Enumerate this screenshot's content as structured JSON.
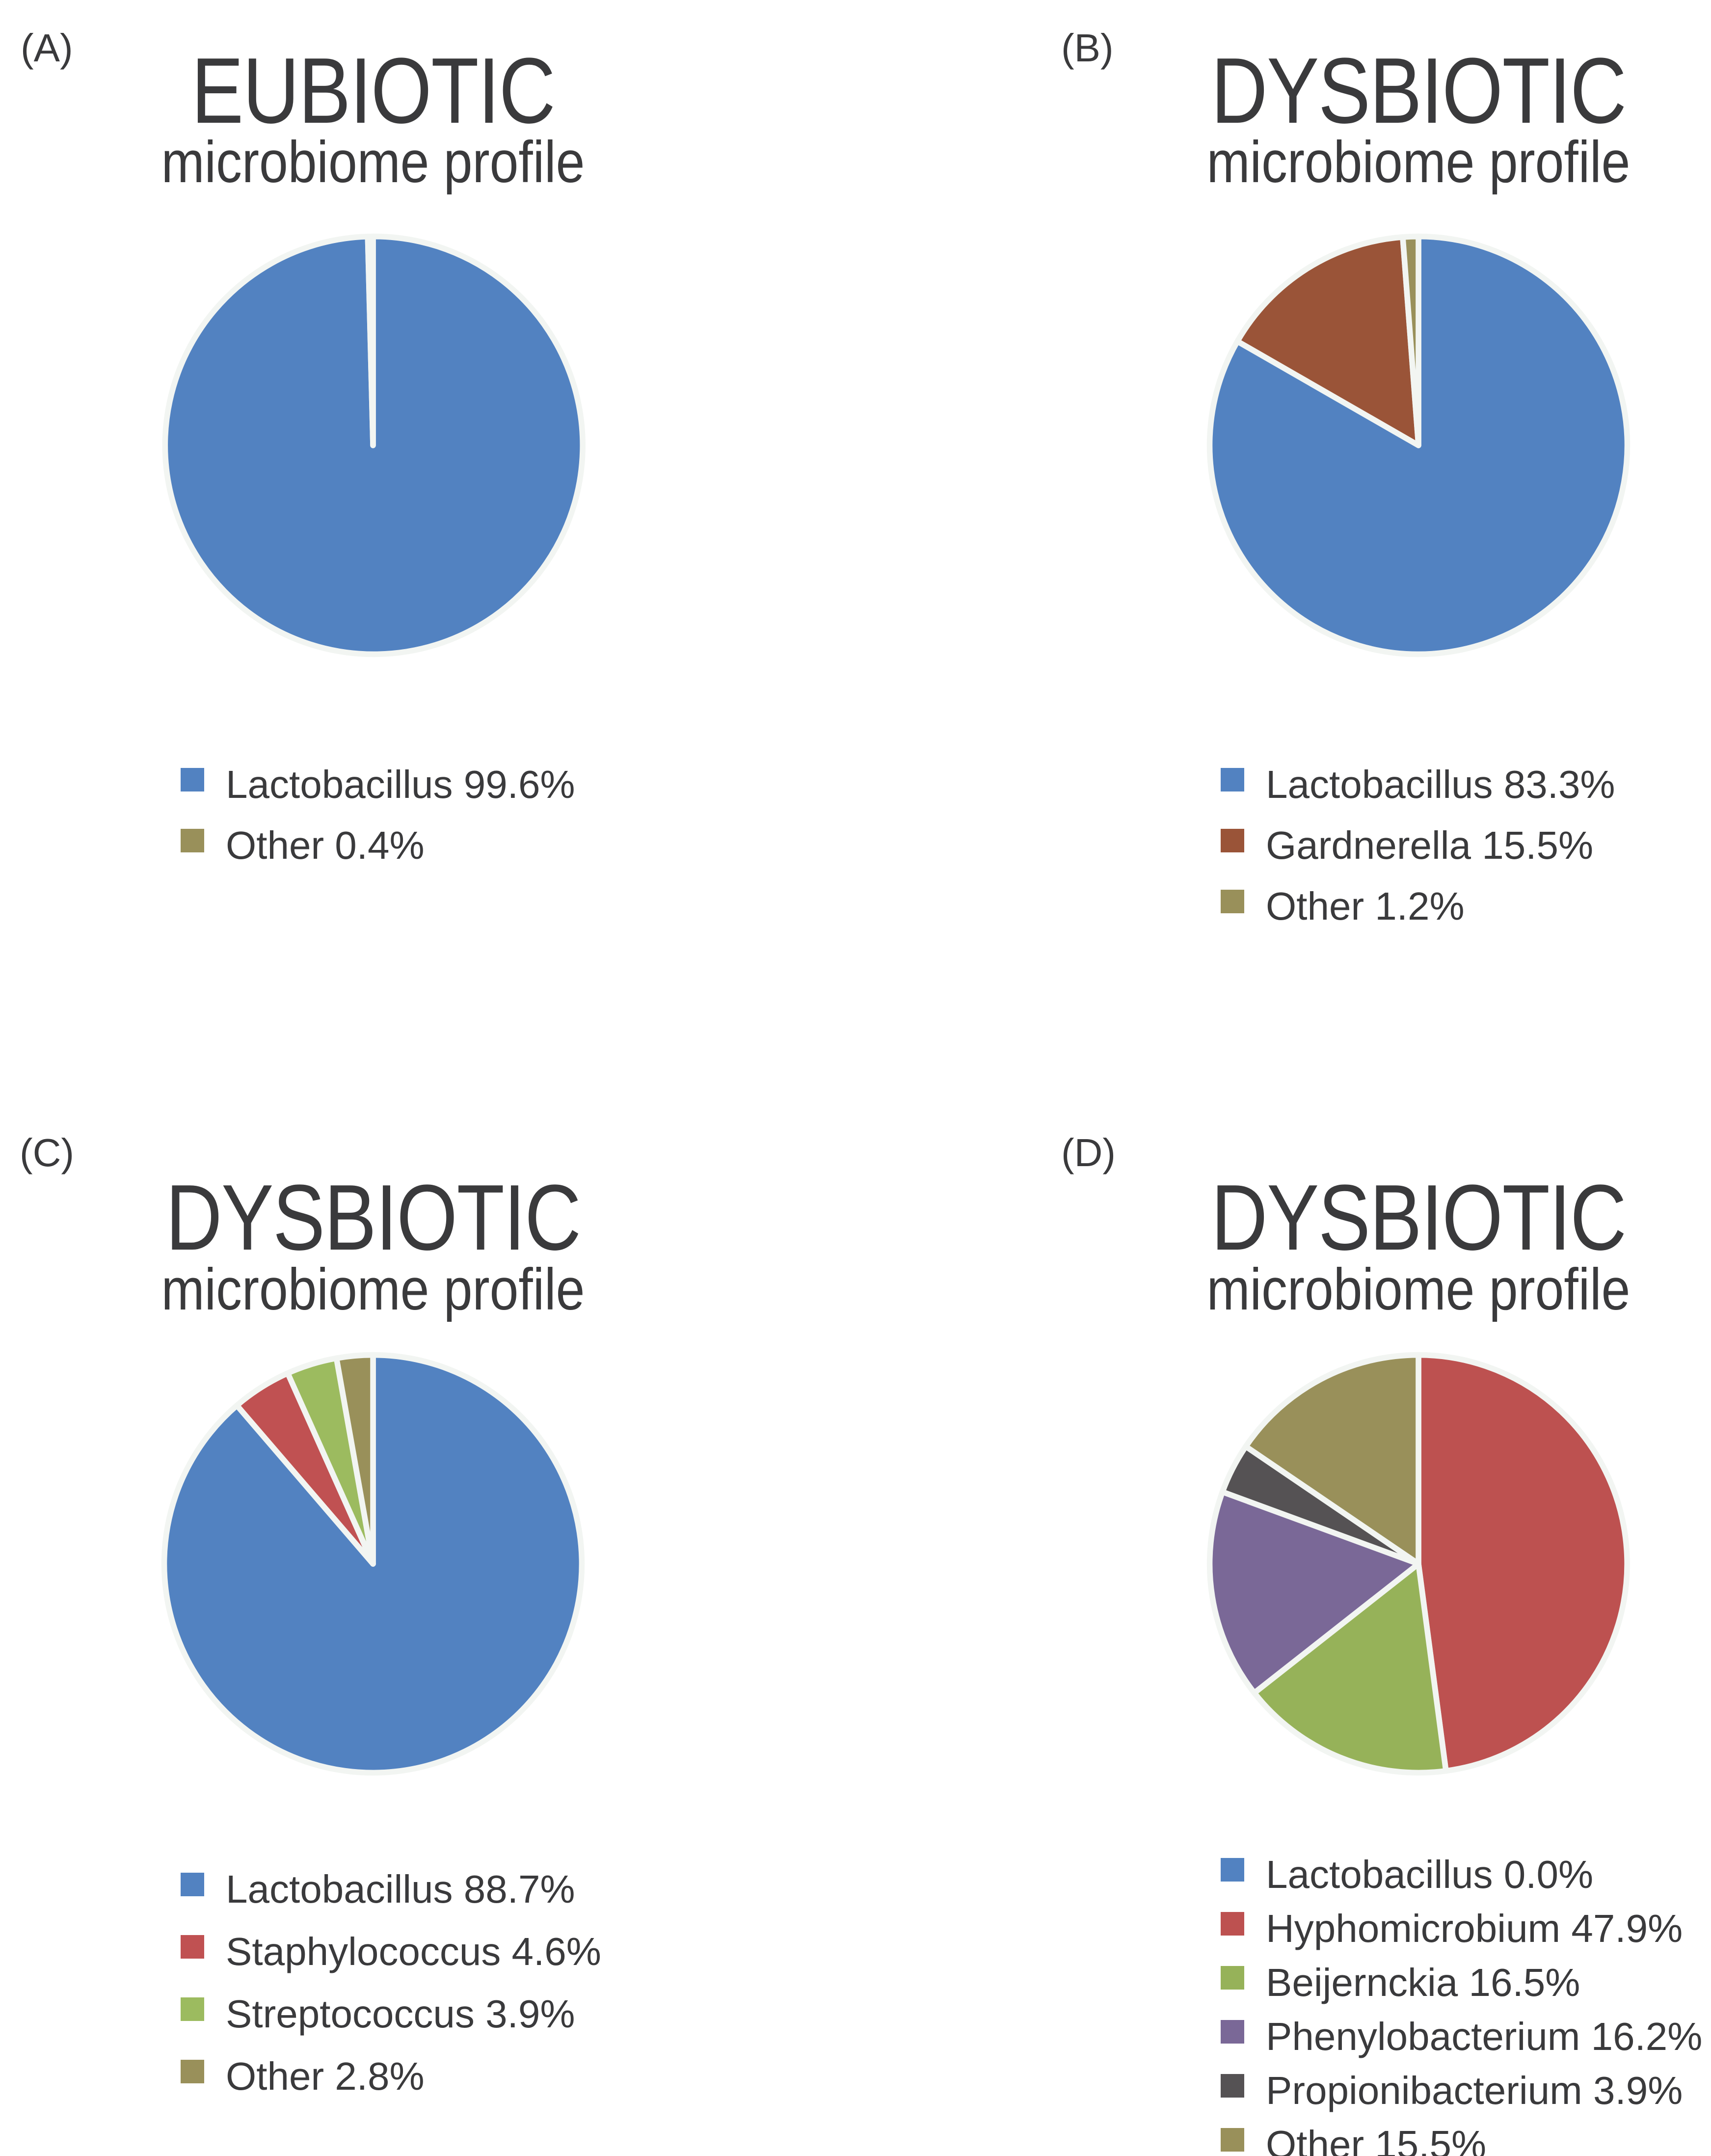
{
  "style": {
    "background_color": "#ffffff",
    "text_color": "#3a3a3c",
    "pie_border_color": "#f2f5f2"
  },
  "chart_data": [
    {
      "type": "pie",
      "panel": "(A)",
      "title": "EUBIOTIC",
      "subtitle": "microbiome profile",
      "start_angle": "top",
      "direction": "clockwise",
      "legend_position": "below-left",
      "labels": [
        "Lactobacillus",
        "Other"
      ],
      "values": [
        99.6,
        0.4
      ],
      "colors": [
        "#5282C1",
        "#99905A"
      ]
    },
    {
      "type": "pie",
      "panel": "(B)",
      "title": "DYSBIOTIC",
      "subtitle": "microbiome profile",
      "start_angle": "top",
      "direction": "clockwise",
      "legend_position": "below-left",
      "labels": [
        "Lactobacillus",
        "Gardnerella",
        "Other"
      ],
      "values": [
        83.3,
        15.5,
        1.2
      ],
      "colors": [
        "#5282C1",
        "#9A5438",
        "#99905A"
      ]
    },
    {
      "type": "pie",
      "panel": "(C)",
      "title": "DYSBIOTIC",
      "subtitle": "microbiome profile",
      "start_angle": "top",
      "direction": "clockwise",
      "legend_position": "below-left",
      "labels": [
        "Lactobacillus",
        "Staphylococcus",
        "Streptococcus",
        "Other"
      ],
      "values": [
        88.7,
        4.6,
        3.9,
        2.8
      ],
      "colors": [
        "#5282C1",
        "#C05152",
        "#9CBB5F",
        "#99905A"
      ]
    },
    {
      "type": "pie",
      "panel": "(D)",
      "title": "DYSBIOTIC",
      "subtitle": "microbiome profile",
      "start_angle": "top",
      "direction": "clockwise",
      "legend_position": "below-left",
      "labels": [
        "Lactobacillus",
        "Hyphomicrobium",
        "Beijernckia",
        "Phenylobacterium",
        "Propionibacterium",
        "Other"
      ],
      "values": [
        0.0,
        47.9,
        16.5,
        16.2,
        3.9,
        15.5
      ],
      "colors": [
        "#5282C1",
        "#BD5150",
        "#96B259",
        "#7A6897",
        "#555254",
        "#99905A"
      ]
    }
  ]
}
